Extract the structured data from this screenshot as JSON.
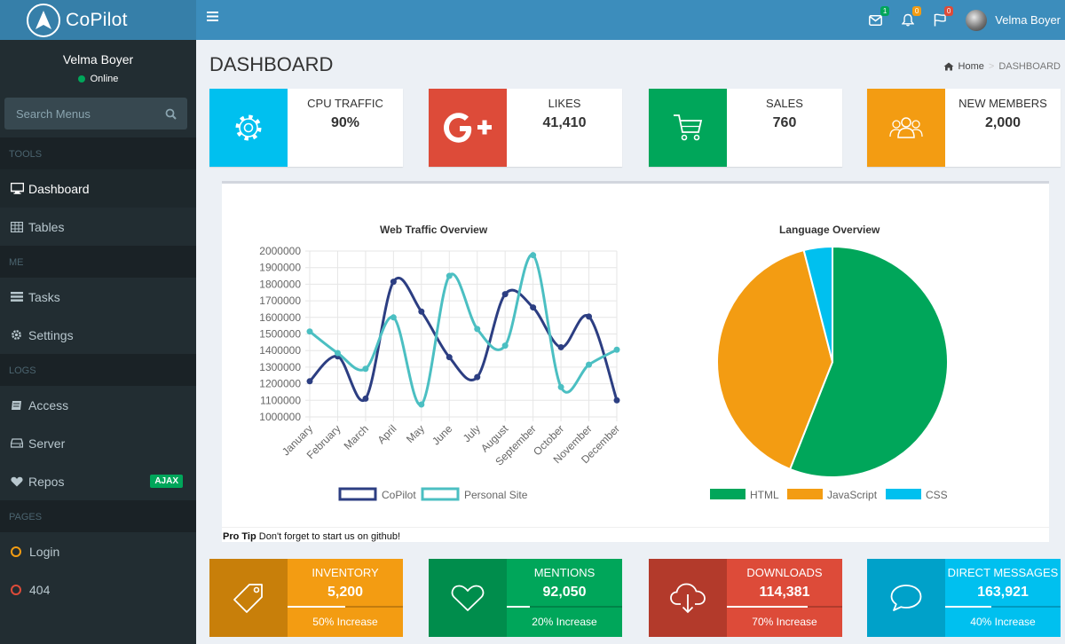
{
  "app": {
    "name": "CoPilot"
  },
  "user": {
    "name": "Velma Boyer",
    "status": "Online"
  },
  "sidebar": {
    "search_placeholder": "Search Menus",
    "sections": [
      {
        "header": "TOOLS",
        "items": [
          {
            "label": "Dashboard",
            "icon": "desktop-icon"
          },
          {
            "label": "Tables",
            "icon": "table-icon"
          }
        ]
      },
      {
        "header": "ME",
        "items": [
          {
            "label": "Tasks",
            "icon": "tasks-icon"
          },
          {
            "label": "Settings",
            "icon": "gear-icon"
          }
        ]
      },
      {
        "header": "LOGS",
        "items": [
          {
            "label": "Access",
            "icon": "book-icon"
          },
          {
            "label": "Server",
            "icon": "hdd-icon"
          },
          {
            "label": "Repos",
            "icon": "heart-icon",
            "badge": "AJAX"
          }
        ]
      },
      {
        "header": "PAGES",
        "items": [
          {
            "label": "Login",
            "icon": "circle-icon"
          },
          {
            "label": "404",
            "icon": "circle-icon"
          }
        ]
      }
    ]
  },
  "topbar": {
    "messages_count": "1",
    "notifications_count": "0",
    "flags_count": "0"
  },
  "page": {
    "title": "DASHBOARD",
    "breadcrumb_home": "Home",
    "breadcrumb_current": "DASHBOARD"
  },
  "info_boxes": [
    {
      "label": "CPU TRAFFIC",
      "value": "90%",
      "color": "#00c0ef",
      "icon": "gear-icon"
    },
    {
      "label": "LIKES",
      "value": "41,410",
      "color": "#dd4b39",
      "icon": "google-plus-icon"
    },
    {
      "label": "SALES",
      "value": "760",
      "color": "#00a65a",
      "icon": "shopping-cart-icon"
    },
    {
      "label": "NEW MEMBERS",
      "value": "2,000",
      "color": "#f39c12",
      "icon": "users-icon"
    }
  ],
  "chart_data": [
    {
      "type": "line",
      "title": "Web Traffic Overview",
      "categories": [
        "January",
        "February",
        "March",
        "April",
        "May",
        "June",
        "July",
        "August",
        "September",
        "October",
        "November",
        "December"
      ],
      "ylim": [
        1000000,
        2000000
      ],
      "yticks": [
        "2000000",
        "1900000",
        "1800000",
        "1700000",
        "1600000",
        "1500000",
        "1400000",
        "1300000",
        "1200000",
        "1100000",
        "1000000"
      ],
      "series": [
        {
          "name": "CoPilot",
          "color": "#2c3e82",
          "values": [
            1215000,
            1365000,
            1110000,
            1815000,
            1635000,
            1360000,
            1240000,
            1740000,
            1660000,
            1420000,
            1605000,
            1100000
          ]
        },
        {
          "name": "Personal Site",
          "color": "#4bbfc2",
          "values": [
            1515000,
            1385000,
            1290000,
            1600000,
            1075000,
            1850000,
            1530000,
            1430000,
            1975000,
            1180000,
            1315000,
            1405000
          ]
        }
      ]
    },
    {
      "type": "pie",
      "title": "Language Overview",
      "labels": [
        "HTML",
        "JavaScript",
        "CSS"
      ],
      "values": [
        56,
        40,
        4
      ],
      "colors": [
        "#00a65a",
        "#f39c12",
        "#00c0ef"
      ]
    }
  ],
  "protip": {
    "label": "Pro Tip",
    "text": "Don't forget to start us on github!"
  },
  "stat_boxes": [
    {
      "label": "INVENTORY",
      "value": "5,200",
      "progress": 50,
      "description": "50% Increase",
      "color": "#f39c12",
      "icon_bg": "#c87f0a",
      "icon": "tag-icon"
    },
    {
      "label": "MENTIONS",
      "value": "92,050",
      "progress": 20,
      "description": "20% Increase",
      "color": "#00a65a",
      "icon_bg": "#008d4c",
      "icon": "heart-icon"
    },
    {
      "label": "DOWNLOADS",
      "value": "114,381",
      "progress": 70,
      "description": "70% Increase",
      "color": "#dd4b39",
      "icon_bg": "#b33a2b",
      "icon": "cloud-download-icon"
    },
    {
      "label": "DIRECT MESSAGES",
      "value": "163,921",
      "progress": 40,
      "description": "40% Increase",
      "color": "#00c0ef",
      "icon_bg": "#00a1c9",
      "icon": "comment-icon"
    }
  ]
}
